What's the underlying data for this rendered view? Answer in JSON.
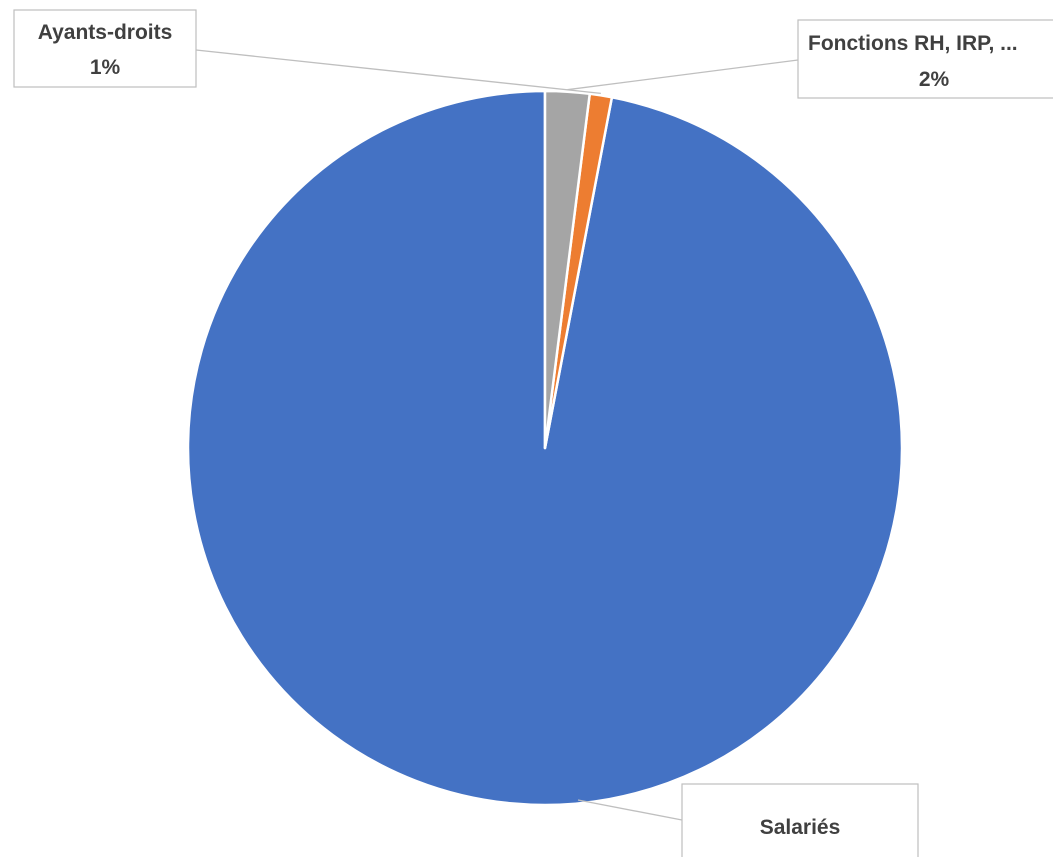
{
  "chart_data": {
    "type": "pie",
    "title": "",
    "start_angle_deg": 0,
    "direction": "counterclockwise",
    "slices": [
      {
        "name": "Salariés",
        "value": 97,
        "label": "Salariés",
        "color": "#4472c4",
        "show_value": false
      },
      {
        "name": "Ayants-droits",
        "value": 1,
        "label": "Ayants-droits",
        "value_label": "1%",
        "color": "#ed7d31",
        "show_value": true
      },
      {
        "name": "Fonctions RH, IRP, ...",
        "value": 2,
        "label": "Fonctions RH, IRP, ...",
        "value_label": "2%",
        "color": "#a5a5a5",
        "show_value": true
      }
    ],
    "legend": "none",
    "data_labels": "callout boxes with leader lines"
  }
}
